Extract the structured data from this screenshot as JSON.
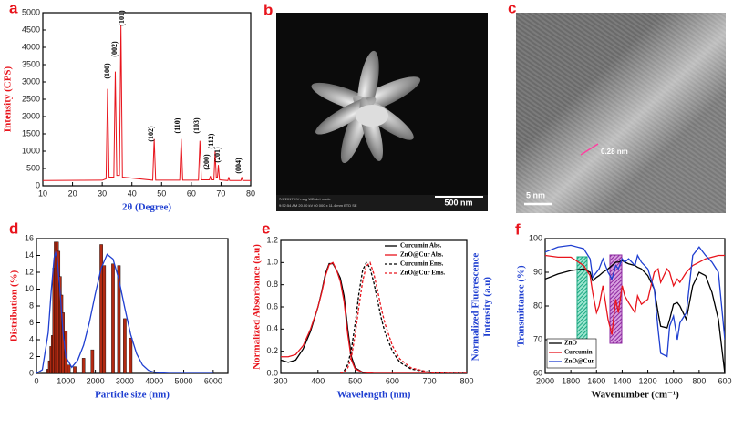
{
  "chart_data": [
    {
      "panel": "a",
      "type": "line",
      "xlabel": "2θ (Degree)",
      "ylabel": "Intensity (CPS)",
      "xlim": [
        10,
        80
      ],
      "xticks": [
        10,
        20,
        30,
        40,
        50,
        60,
        70,
        80
      ],
      "ylim": [
        0,
        5000
      ],
      "yticks": [
        0,
        500,
        1000,
        1500,
        2000,
        2500,
        3000,
        3500,
        4000,
        4500,
        5000
      ],
      "series": [
        {
          "color": "#e8141c",
          "x": [
            10,
            30,
            31.3,
            31.8,
            32.3,
            33.9,
            34.4,
            34.9,
            35.8,
            36.3,
            36.8,
            47,
            47.5,
            48,
            56.1,
            56.6,
            57.1,
            62.4,
            62.9,
            63.4,
            66.1,
            66.4,
            66.7,
            67.6,
            68,
            68.4,
            68.8,
            69.1,
            69.5,
            72.3,
            72.6,
            72.9,
            76.7,
            77,
            77.3,
            80
          ],
          "values": [
            150,
            160,
            200,
            2800,
            250,
            250,
            3300,
            300,
            300,
            4650,
            250,
            160,
            1350,
            160,
            160,
            1350,
            160,
            160,
            1300,
            170,
            170,
            280,
            170,
            170,
            1000,
            250,
            250,
            600,
            170,
            150,
            250,
            150,
            150,
            250,
            150,
            150
          ]
        }
      ],
      "annotations": [
        "(100)",
        "(002)",
        "(101)",
        "(102)",
        "(110)",
        "(103)",
        "(200)",
        "(112)",
        "(201)",
        "(004)"
      ]
    },
    {
      "panel": "b",
      "type": "image",
      "scale_bar": "500 nm",
      "info": [
        "7/4/2017  HV  mag  WD  det  mode",
        "9:52:54 AM  20.00 kV  60 000 x  11.4 mm  ETD  SE"
      ]
    },
    {
      "panel": "c",
      "type": "image",
      "scale_bar": "5 nm",
      "annotation": "0.28 nm"
    },
    {
      "panel": "d",
      "type": "bar",
      "xlabel": "Particle size (nm)",
      "ylabel": "Distribution (%)",
      "xlim": [
        0,
        6500
      ],
      "xticks": [
        0,
        1000,
        2000,
        3000,
        4000,
        5000,
        6000
      ],
      "ylim": [
        0,
        16
      ],
      "yticks": [
        0,
        2,
        4,
        6,
        8,
        10,
        12,
        14,
        16
      ],
      "series": [
        {
          "type": "bar",
          "color": "#b22a12",
          "x": [
            400,
            450,
            500,
            550,
            600,
            650,
            700,
            750,
            800,
            850,
            900,
            1000,
            1100,
            1300,
            1600,
            1900,
            2200,
            2300,
            2600,
            2800,
            3000,
            3200
          ],
          "values": [
            0.5,
            1.5,
            3.2,
            4.5,
            12.5,
            15.6,
            15.6,
            14.5,
            11.5,
            9.3,
            7.2,
            5,
            1,
            0.8,
            1.8,
            2.8,
            15.3,
            12.8,
            13,
            12.8,
            6.5,
            4.2
          ]
        },
        {
          "type": "line",
          "color": "#1f3fd1",
          "x": [
            0,
            200,
            400,
            500,
            600,
            650,
            700,
            800,
            900,
            1000,
            1200,
            1400,
            1600,
            1800,
            2000,
            2200,
            2400,
            2600,
            2800,
            3000,
            3200,
            3400,
            3600,
            3800,
            4000,
            4500,
            5000,
            5500,
            6000
          ],
          "values": [
            0.01,
            0.43,
            4.85,
            9.7,
            13.7,
            14.32,
            13.7,
            9.76,
            4.92,
            1.93,
            0.72,
            1.57,
            3.35,
            6.1,
            9.47,
            12.5,
            14.13,
            13.57,
            11.1,
            7.75,
            4.6,
            2.34,
            1.0,
            0.37,
            0.12,
            0,
            0,
            0,
            0
          ]
        }
      ]
    },
    {
      "panel": "e",
      "type": "line",
      "xlabel": "Wavelength (nm)",
      "ylabel": "Normalized Absorbance (a.u)",
      "y2label": [
        "Normalized Fluorescence",
        "Intensity (a.u)"
      ],
      "legend": "upper right",
      "xlim": [
        300,
        800
      ],
      "xticks": [
        300,
        400,
        500,
        600,
        700,
        800
      ],
      "ylim": [
        0,
        1.2
      ],
      "yticks": [
        {
          "value": 0,
          "label": "0.0"
        },
        0.2,
        0.4,
        0.6,
        0.8,
        {
          "value": 1,
          "label": "1.0"
        },
        1.2
      ],
      "series": [
        {
          "name": "Curcumin Abs.",
          "color": "#000000",
          "dash": false,
          "x": [
            300,
            320,
            340,
            360,
            380,
            400,
            410,
            420,
            430,
            440,
            450,
            460,
            470,
            480,
            490,
            500,
            520,
            550,
            600,
            700,
            800
          ],
          "values": [
            0.12,
            0.1,
            0.12,
            0.22,
            0.38,
            0.6,
            0.74,
            0.9,
            0.99,
            0.99,
            0.93,
            0.86,
            0.7,
            0.4,
            0.15,
            0.05,
            0.01,
            0,
            0,
            0,
            0
          ]
        },
        {
          "name": "ZnO@Cur Abs.",
          "color": "#e8141c",
          "dash": false,
          "x": [
            300,
            320,
            340,
            360,
            380,
            400,
            410,
            420,
            430,
            440,
            450,
            460,
            470,
            480,
            490,
            500,
            520,
            550,
            600,
            700,
            800
          ],
          "values": [
            0.15,
            0.15,
            0.17,
            0.25,
            0.4,
            0.6,
            0.73,
            0.88,
            0.98,
            1.0,
            0.93,
            0.83,
            0.65,
            0.35,
            0.12,
            0.04,
            0.01,
            0,
            0,
            0,
            0
          ]
        },
        {
          "name": "Curcumin Ems.",
          "color": "#000000",
          "dash": true,
          "x": [
            460,
            470,
            480,
            490,
            500,
            510,
            520,
            530,
            540,
            550,
            560,
            570,
            580,
            600,
            620,
            650,
            700,
            750,
            800
          ],
          "values": [
            0,
            0.02,
            0.08,
            0.22,
            0.45,
            0.72,
            0.93,
            1.0,
            0.95,
            0.82,
            0.66,
            0.5,
            0.37,
            0.2,
            0.1,
            0.04,
            0.01,
            0,
            0
          ]
        },
        {
          "name": "ZnO@Cur Ems.",
          "color": "#e8141c",
          "dash": true,
          "x": [
            460,
            470,
            480,
            490,
            500,
            510,
            520,
            530,
            540,
            550,
            560,
            570,
            580,
            600,
            620,
            650,
            700,
            750,
            800
          ],
          "values": [
            0,
            0.01,
            0.05,
            0.15,
            0.35,
            0.6,
            0.83,
            0.97,
            1.0,
            0.9,
            0.75,
            0.59,
            0.45,
            0.25,
            0.13,
            0.05,
            0.01,
            0,
            0
          ]
        }
      ]
    },
    {
      "panel": "f",
      "type": "line",
      "xlabel": "Wavenumber (cm⁻¹)",
      "ylabel": "Transmittance (%)",
      "legend": "lower left",
      "xlim": [
        2000,
        600
      ],
      "xticks": [
        2000,
        1800,
        1600,
        1400,
        1200,
        1000,
        800,
        600
      ],
      "ylim": [
        60,
        100
      ],
      "yticks": [
        60,
        70,
        80,
        90,
        100
      ],
      "x": [
        2000,
        1900,
        1800,
        1700,
        1650,
        1630,
        1600,
        1580,
        1550,
        1510,
        1480,
        1450,
        1430,
        1400,
        1380,
        1350,
        1300,
        1280,
        1250,
        1200,
        1150,
        1120,
        1100,
        1050,
        1030,
        1000,
        970,
        950,
        900,
        850,
        800,
        750,
        700,
        650,
        600
      ],
      "series": [
        {
          "name": "ZnO",
          "color": "#000000",
          "values": [
            88,
            89.5,
            90.5,
            91,
            90,
            87.5,
            88.5,
            89,
            90,
            91,
            92,
            93,
            93,
            93.5,
            93,
            92.5,
            92,
            91.5,
            91,
            89,
            85,
            78,
            74,
            73.5,
            76,
            80.5,
            81,
            80,
            76,
            86,
            90,
            89,
            84,
            76,
            60
          ]
        },
        {
          "name": "Curcumin",
          "color": "#e8141c",
          "values": [
            95,
            94.5,
            94.5,
            92,
            89,
            84,
            78,
            80,
            86,
            76,
            71.5,
            82,
            78,
            86,
            83,
            81,
            78,
            83,
            80.5,
            82,
            90,
            91,
            87,
            91,
            90,
            86,
            88,
            87,
            90,
            92,
            93,
            94,
            94.5,
            95,
            95
          ]
        },
        {
          "name": "ZnO@Cur",
          "color": "#1f3fd1",
          "values": [
            96,
            97.5,
            98,
            97,
            94,
            88.5,
            90,
            91,
            94,
            90,
            88,
            92,
            91,
            94,
            93,
            94,
            92,
            95,
            93,
            91,
            85,
            73,
            66,
            65,
            74,
            77,
            70,
            75,
            78,
            95,
            97.5,
            95,
            93,
            90,
            70
          ]
        }
      ]
    }
  ]
}
